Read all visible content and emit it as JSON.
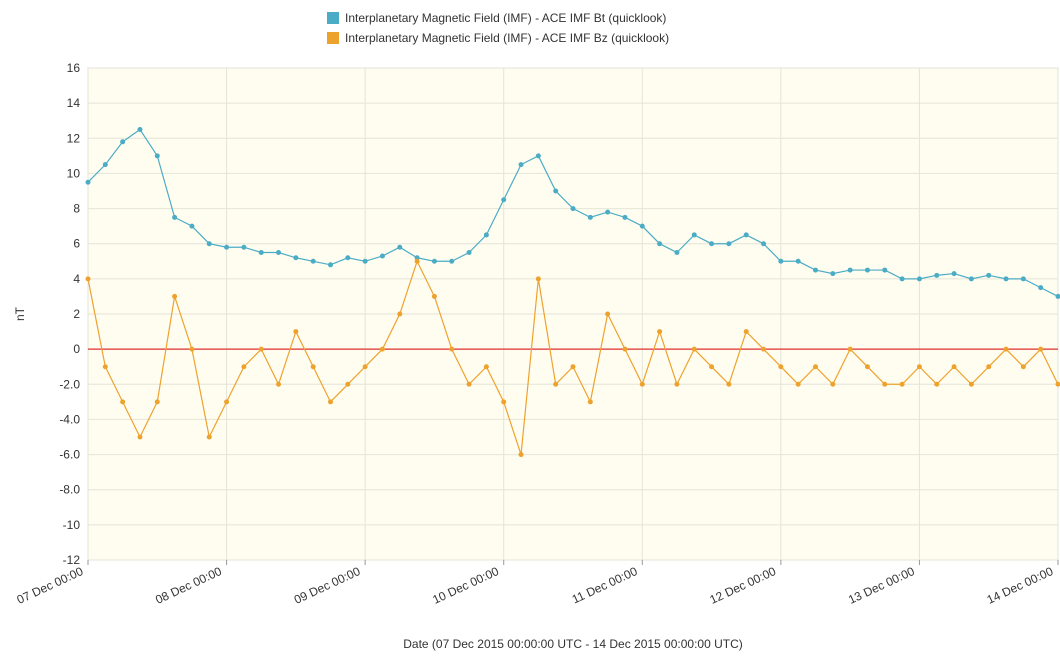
{
  "chart_data": {
    "type": "line",
    "y_label": "nT",
    "x_label": "Date (07 Dec 2015 00:00:00 UTC - 14 Dec 2015 00:00:00 UTC)",
    "x": [
      "07 Dec 00:00",
      "07 Dec 03:00",
      "07 Dec 06:00",
      "07 Dec 09:00",
      "07 Dec 12:00",
      "07 Dec 15:00",
      "07 Dec 18:00",
      "07 Dec 21:00",
      "08 Dec 00:00",
      "08 Dec 03:00",
      "08 Dec 06:00",
      "08 Dec 09:00",
      "08 Dec 12:00",
      "08 Dec 15:00",
      "08 Dec 18:00",
      "08 Dec 21:00",
      "09 Dec 00:00",
      "09 Dec 03:00",
      "09 Dec 06:00",
      "09 Dec 09:00",
      "09 Dec 12:00",
      "09 Dec 15:00",
      "09 Dec 18:00",
      "09 Dec 21:00",
      "10 Dec 00:00",
      "10 Dec 03:00",
      "10 Dec 06:00",
      "10 Dec 09:00",
      "10 Dec 12:00",
      "10 Dec 15:00",
      "10 Dec 18:00",
      "10 Dec 21:00",
      "11 Dec 00:00",
      "11 Dec 03:00",
      "11 Dec 06:00",
      "11 Dec 09:00",
      "11 Dec 12:00",
      "11 Dec 15:00",
      "11 Dec 18:00",
      "11 Dec 21:00",
      "12 Dec 00:00",
      "12 Dec 03:00",
      "12 Dec 06:00",
      "12 Dec 09:00",
      "12 Dec 12:00",
      "12 Dec 15:00",
      "12 Dec 18:00",
      "12 Dec 21:00",
      "13 Dec 00:00",
      "13 Dec 03:00",
      "13 Dec 06:00",
      "13 Dec 09:00",
      "13 Dec 12:00",
      "13 Dec 15:00",
      "13 Dec 18:00",
      "13 Dec 21:00",
      "14 Dec 00:00"
    ],
    "xticks": [
      "07 Dec 00:00",
      "08 Dec 00:00",
      "09 Dec 00:00",
      "10 Dec 00:00",
      "11 Dec 00:00",
      "12 Dec 00:00",
      "13 Dec 00:00",
      "14 Dec 00:00"
    ],
    "series": [
      {
        "name": "Interplanetary Magnetic Field (IMF) - ACE IMF Bt (quicklook)",
        "color": "#4bacc6",
        "values": [
          9.5,
          10.5,
          11.8,
          12.5,
          11,
          7.5,
          7,
          6,
          5.8,
          5.8,
          5.5,
          5.5,
          5.2,
          5,
          4.8,
          5.2,
          5,
          5.3,
          5.8,
          5.2,
          5,
          5,
          5.5,
          6.5,
          8.5,
          10.5,
          11,
          9,
          8,
          7.5,
          7.8,
          7.5,
          7,
          6,
          5.5,
          6.5,
          6,
          6,
          6.5,
          6,
          5,
          5,
          4.5,
          4.3,
          4.5,
          4.5,
          4.5,
          4,
          4,
          4.2,
          4.3,
          4,
          4.2,
          4,
          4,
          3.5,
          3
        ]
      },
      {
        "name": "Interplanetary Magnetic Field (IMF) - ACE IMF Bz (quicklook)",
        "color": "#eea22e",
        "values": [
          4,
          -1,
          -3,
          -5,
          -3,
          3,
          0,
          -5,
          -3,
          -1,
          0,
          -2,
          1,
          -1,
          -3,
          -2,
          -1,
          0,
          2,
          5,
          3,
          0,
          -2,
          -1,
          -3,
          -6,
          4,
          -2,
          -1,
          -3,
          2,
          0,
          -2,
          1,
          -2,
          0,
          -1,
          -2,
          1,
          0,
          -1,
          -2,
          -1,
          -2,
          0,
          -1,
          -2,
          -2,
          -1,
          -2,
          -1,
          -2,
          -1,
          0,
          -1,
          0,
          -2
        ]
      }
    ],
    "ylim": [
      -12,
      16
    ],
    "yticks": [
      -12,
      -10,
      -8,
      {
        "value": -8,
        "label": "-8.0"
      },
      {
        "value": -6,
        "label": "-6.0"
      },
      {
        "value": -4,
        "label": "-4.0"
      },
      {
        "value": -2,
        "label": "-2.0"
      },
      0,
      2,
      4,
      6,
      8,
      10,
      12,
      14,
      16
    ],
    "zero_line_color": "#e03030",
    "grid": true
  }
}
